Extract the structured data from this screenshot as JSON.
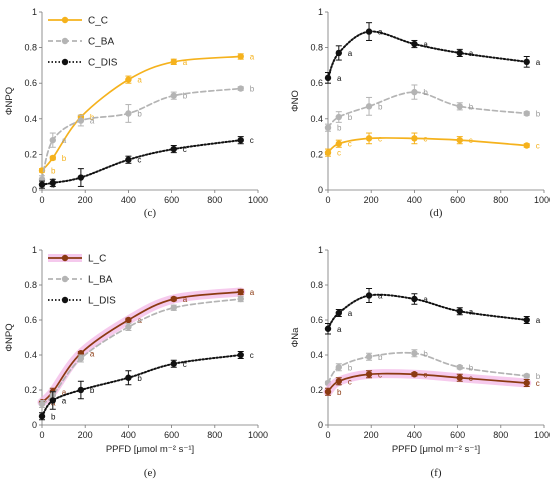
{
  "chart_data": [
    {
      "type": "line",
      "panel_label": "(c)",
      "ylabel": "ΦNPQ",
      "xlabel": "",
      "ylim": [
        0,
        1
      ],
      "yticks": [
        "0",
        "0.2",
        "0.4",
        "0.6",
        "0.8",
        "1"
      ],
      "xlim": [
        0,
        1000
      ],
      "xticks": [
        "0",
        "200",
        "400",
        "600",
        "800",
        "1000"
      ],
      "legend": "top-left",
      "series": [
        {
          "name": "C_C",
          "color": "#f5b21d",
          "dash": "solid",
          "x": [
            0,
            50,
            180,
            400,
            610,
            920
          ],
          "y": [
            0.11,
            0.18,
            0.41,
            0.62,
            0.72,
            0.75
          ],
          "err": [
            0.01,
            0.01,
            0.01,
            0.02,
            0.015,
            0.015
          ],
          "letters": [
            "b",
            "b",
            "b",
            "a",
            "a",
            "a"
          ]
        },
        {
          "name": "C_BA",
          "color": "#b4b4b4",
          "dash": "dashed",
          "x": [
            0,
            50,
            180,
            400,
            610,
            920
          ],
          "y": [
            0.06,
            0.28,
            0.39,
            0.43,
            0.53,
            0.57
          ],
          "err": [
            0.02,
            0.04,
            0.03,
            0.05,
            0.02,
            0.01
          ],
          "letters": [
            "a",
            "a",
            "a",
            "b",
            "b",
            "b"
          ]
        },
        {
          "name": "C_DIS",
          "color": "#111111",
          "dash": "dotted",
          "x": [
            0,
            50,
            180,
            400,
            610,
            920
          ],
          "y": [
            0.03,
            0.04,
            0.07,
            0.17,
            0.23,
            0.28
          ],
          "err": [
            0.02,
            0.02,
            0.05,
            0.02,
            0.02,
            0.02
          ],
          "letters": [
            "b",
            "",
            "",
            "c",
            "c",
            "c"
          ]
        }
      ]
    },
    {
      "type": "line",
      "panel_label": "(d)",
      "ylabel": "ΦNO",
      "xlabel": "",
      "ylim": [
        0,
        1
      ],
      "yticks": [
        "0",
        "0.2",
        "0.4",
        "0.6",
        "0.8",
        "1"
      ],
      "xlim": [
        0,
        1000
      ],
      "xticks": [
        "0",
        "200",
        "400",
        "600",
        "800",
        "1000"
      ],
      "series": [
        {
          "name": "",
          "color": "#111111",
          "dash": "dotted",
          "x": [
            0,
            50,
            190,
            400,
            610,
            920
          ],
          "y": [
            0.63,
            0.77,
            0.89,
            0.82,
            0.77,
            0.72
          ],
          "err": [
            0.03,
            0.04,
            0.05,
            0.02,
            0.02,
            0.03
          ],
          "letters": [
            "a",
            "a",
            "a",
            "a",
            "a",
            "a"
          ]
        },
        {
          "name": "",
          "color": "#b4b4b4",
          "dash": "dashed",
          "x": [
            0,
            50,
            190,
            400,
            610,
            920
          ],
          "y": [
            0.35,
            0.41,
            0.47,
            0.55,
            0.47,
            0.43
          ],
          "err": [
            0.02,
            0.03,
            0.05,
            0.04,
            0.02,
            0.01
          ],
          "letters": [
            "b",
            "b",
            "b",
            "b",
            "b",
            "b"
          ]
        },
        {
          "name": "",
          "color": "#f5b21d",
          "dash": "solid",
          "x": [
            0,
            50,
            190,
            400,
            610,
            920
          ],
          "y": [
            0.21,
            0.26,
            0.29,
            0.29,
            0.28,
            0.25
          ],
          "err": [
            0.02,
            0.02,
            0.03,
            0.03,
            0.02,
            0.01
          ],
          "letters": [
            "c",
            "c",
            "c",
            "c",
            "c",
            "c"
          ]
        }
      ]
    },
    {
      "type": "line",
      "panel_label": "(e)",
      "ylabel": "ΦNPQ",
      "xlabel": "PPFD [μmol m⁻² s⁻¹]",
      "ylim": [
        0,
        1
      ],
      "yticks": [
        "0",
        "0.2",
        "0.4",
        "0.6",
        "0.8",
        "1"
      ],
      "xlim": [
        0,
        1000
      ],
      "xticks": [
        "0",
        "200",
        "400",
        "600",
        "800",
        "1000"
      ],
      "legend": "top-left",
      "series": [
        {
          "name": "L_C",
          "color": "#8b3a12",
          "dash": "solid",
          "halo": "#f2b3e6",
          "x": [
            0,
            50,
            180,
            400,
            610,
            920
          ],
          "y": [
            0.13,
            0.19,
            0.41,
            0.6,
            0.72,
            0.76
          ],
          "err": [
            0.01,
            0.02,
            0.01,
            0.01,
            0.01,
            0.015
          ],
          "letters": [
            "a",
            "a",
            "a",
            "a",
            "a",
            "a"
          ]
        },
        {
          "name": "L_BA",
          "color": "#b4b4b4",
          "dash": "dashed",
          "x": [
            0,
            50,
            180,
            400,
            610,
            920
          ],
          "y": [
            0.12,
            0.17,
            0.38,
            0.56,
            0.67,
            0.72
          ],
          "err": [
            0.02,
            0.02,
            0.02,
            0.02,
            0.015,
            0.015
          ],
          "letters": [
            "",
            "",
            "",
            "",
            "",
            ""
          ]
        },
        {
          "name": "L_DIS",
          "color": "#111111",
          "dash": "dotted",
          "x": [
            0,
            50,
            180,
            400,
            610,
            920
          ],
          "y": [
            0.05,
            0.14,
            0.2,
            0.27,
            0.35,
            0.4
          ],
          "err": [
            0.02,
            0.05,
            0.05,
            0.04,
            0.02,
            0.02
          ],
          "letters": [
            "b",
            "a",
            "b",
            "b",
            "c",
            "c"
          ]
        }
      ]
    },
    {
      "type": "line",
      "panel_label": "(f)",
      "ylabel": "ΦNa",
      "xlabel": "PPFD [μmol m⁻² s⁻¹]",
      "ylim": [
        0,
        1
      ],
      "yticks": [
        "0",
        "0.2",
        "0.4",
        "0.6",
        "0.8",
        "1"
      ],
      "xlim": [
        0,
        1000
      ],
      "xticks": [
        "0",
        "200",
        "400",
        "600",
        "800",
        "1000"
      ],
      "series": [
        {
          "name": "",
          "color": "#111111",
          "dash": "dotted",
          "x": [
            0,
            50,
            190,
            400,
            610,
            920
          ],
          "y": [
            0.55,
            0.64,
            0.74,
            0.72,
            0.65,
            0.6
          ],
          "err": [
            0.03,
            0.02,
            0.04,
            0.03,
            0.02,
            0.02
          ],
          "letters": [
            "a",
            "a",
            "a",
            "a",
            "a",
            "a"
          ]
        },
        {
          "name": "",
          "color": "#b4b4b4",
          "dash": "dashed",
          "x": [
            0,
            50,
            190,
            400,
            610,
            920
          ],
          "y": [
            0.24,
            0.33,
            0.39,
            0.41,
            0.33,
            0.28
          ],
          "err": [
            0.01,
            0.02,
            0.02,
            0.02,
            0.01,
            0.01
          ],
          "letters": [
            "b",
            "b",
            "b",
            "b",
            "b",
            "b"
          ]
        },
        {
          "name": "",
          "color": "#8b3a12",
          "dash": "solid",
          "halo": "#f2b3e6",
          "x": [
            0,
            50,
            190,
            400,
            610,
            920
          ],
          "y": [
            0.19,
            0.25,
            0.29,
            0.29,
            0.27,
            0.24
          ],
          "err": [
            0.02,
            0.02,
            0.02,
            0.01,
            0.02,
            0.02
          ],
          "letters": [
            "b",
            "c",
            "c",
            "c",
            "c",
            "c"
          ]
        }
      ]
    }
  ]
}
